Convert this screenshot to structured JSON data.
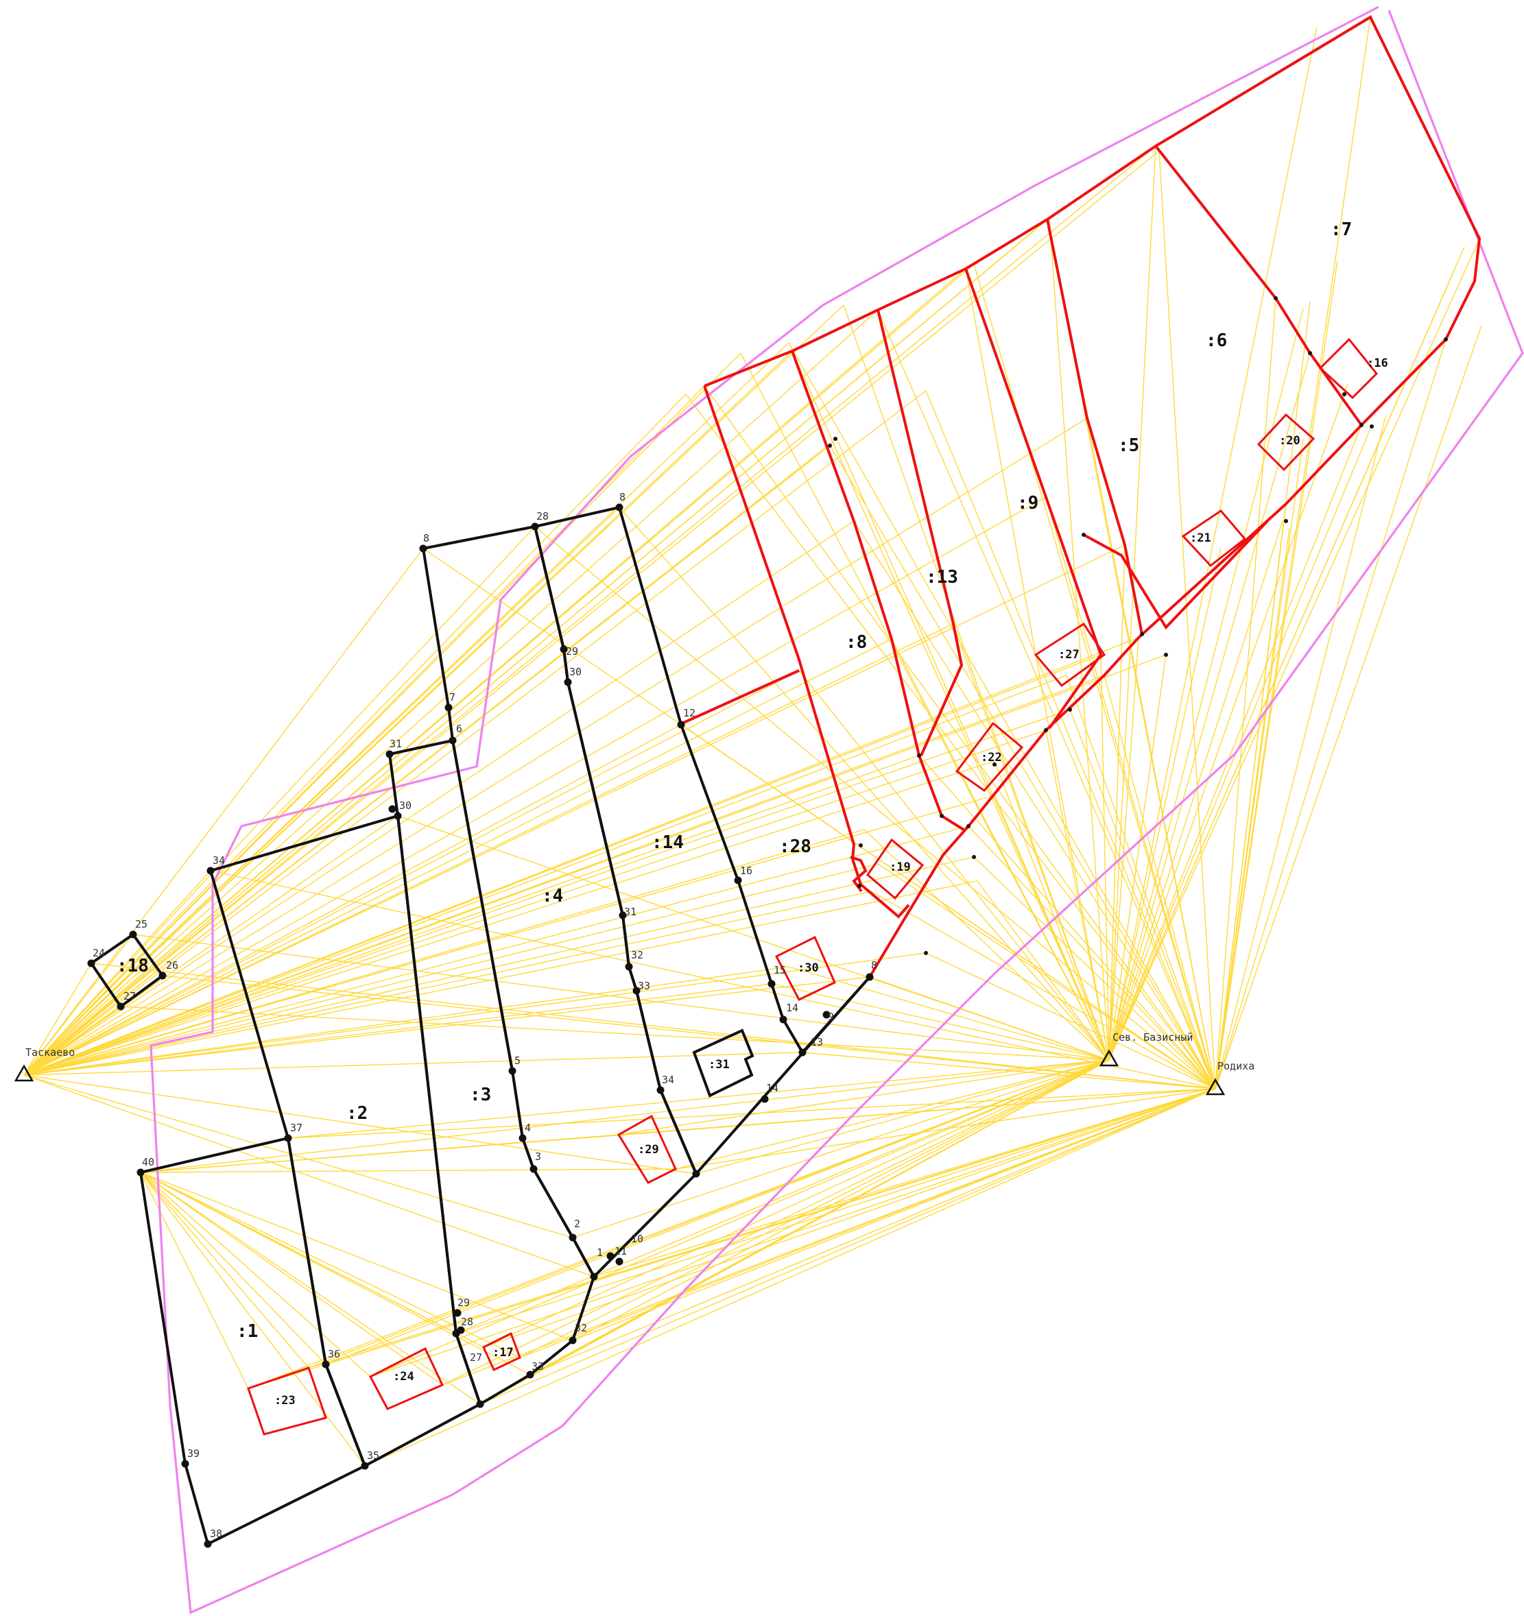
{
  "map": {
    "stations": [
      {
        "name": "Таскаево"
      },
      {
        "name": "Сев. Базисный"
      },
      {
        "name": "Родиха"
      }
    ],
    "plot_labels": [
      ":1",
      ":2",
      ":3",
      ":4",
      ":5",
      ":6",
      ":7",
      ":8",
      ":9",
      ":13",
      ":14",
      ":18",
      ":28"
    ],
    "building_labels": [
      ":16",
      ":17",
      ":19",
      ":20",
      ":21",
      ":22",
      ":23",
      ":24",
      ":27",
      ":29",
      ":30",
      ":31"
    ],
    "point_labels": [
      "1",
      "2",
      "3",
      "4",
      "5",
      "6",
      "7",
      "8",
      "8",
      "8",
      "9",
      "10",
      "11",
      "12",
      "13",
      "14",
      "14",
      "15",
      "16",
      "24",
      "25",
      "26",
      "27",
      "27",
      "28",
      "28",
      "29",
      "29",
      "30",
      "30",
      "31",
      "31",
      "32",
      "32",
      "33",
      "33",
      "34",
      "34",
      "35",
      "36",
      "37",
      "38",
      "39",
      "40"
    ],
    "colors": {
      "black_boundary": "#111111",
      "red_boundary": "#ee1111",
      "survey_lines": "#ffd21a",
      "zone_outline": "#ee82ee"
    }
  }
}
